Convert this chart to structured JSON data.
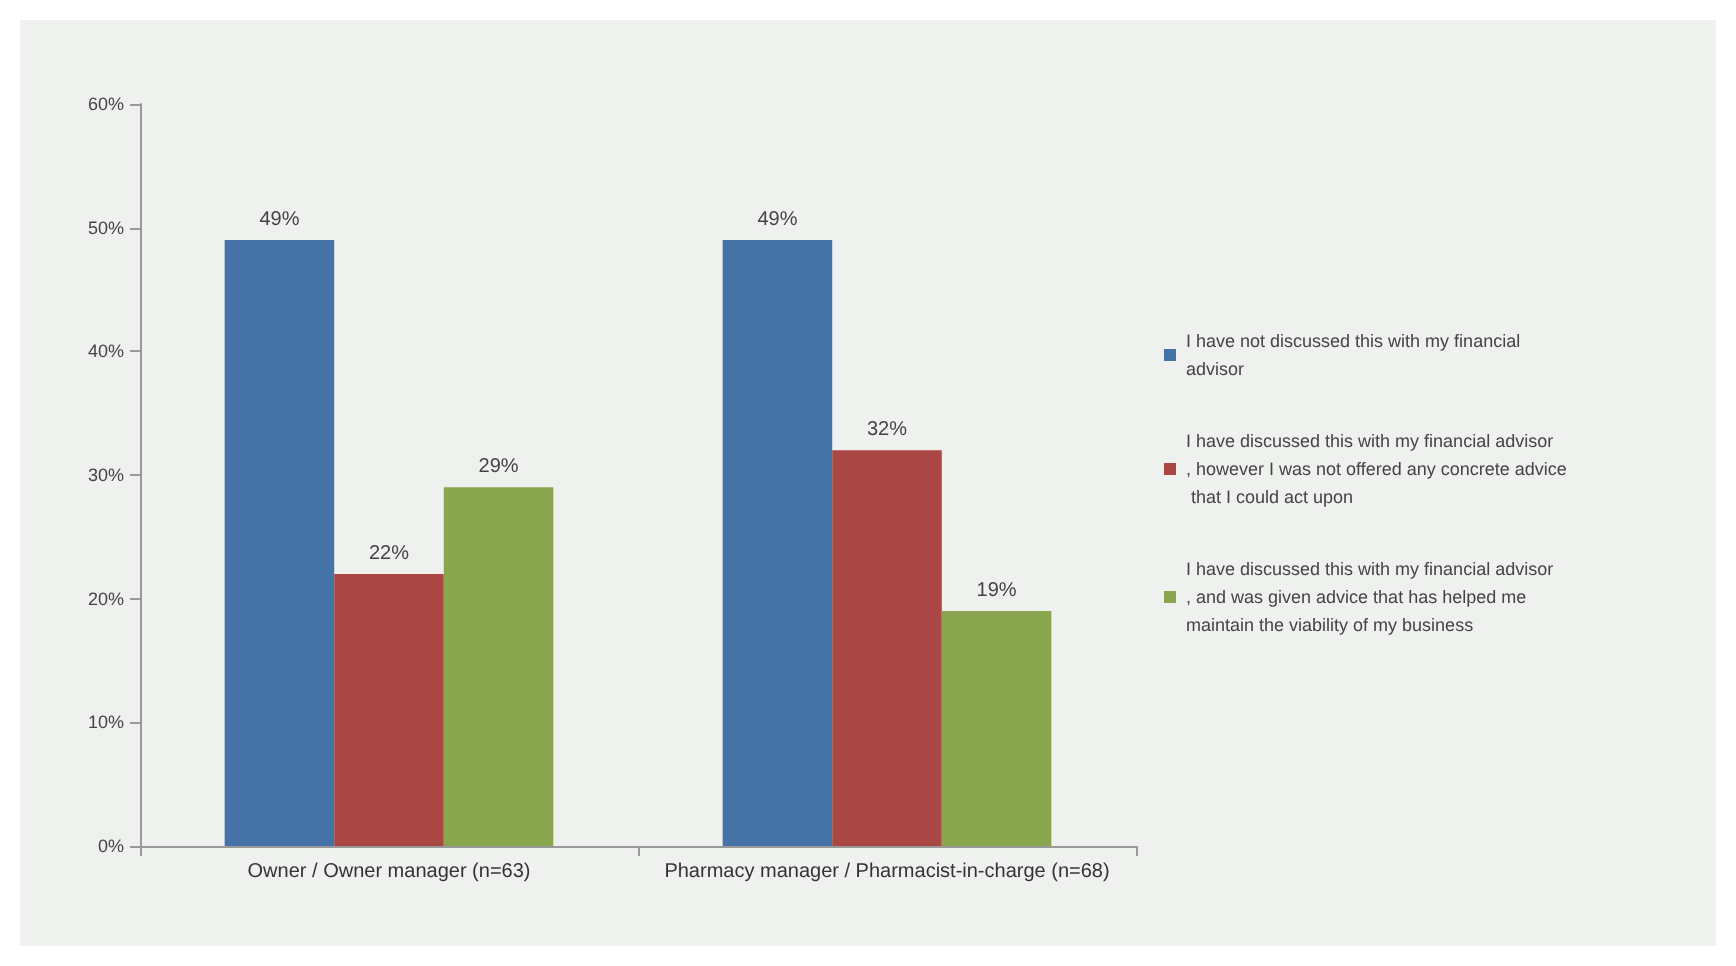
{
  "chart_data": {
    "type": "bar",
    "categories": [
      "Owner / Owner manager (n=63)",
      "Pharmacy manager / Pharmacist-in-charge (n=68)"
    ],
    "series": [
      {
        "name": "I have not discussed this with my financial advisor",
        "color": "#4573a7",
        "values": [
          49,
          49
        ],
        "value_labels": [
          "49%",
          "49%"
        ]
      },
      {
        "name": "I have discussed this with my financial advisor, however I was not offered any concrete advice that I could act upon",
        "color": "#aa4643",
        "values": [
          22,
          32
        ],
        "value_labels": [
          "22%",
          "32%"
        ]
      },
      {
        "name": "I have discussed this with my financial advisor, and was given advice that has helped me maintain the viability of my business",
        "color": "#89a54e",
        "values": [
          29,
          19
        ],
        "value_labels": [
          "29%",
          "19%"
        ]
      }
    ],
    "ylim": [
      0,
      60
    ],
    "yticks": [
      {
        "value": 0,
        "label": "0%"
      },
      {
        "value": 10,
        "label": "10%"
      },
      {
        "value": 20,
        "label": "20%"
      },
      {
        "value": 30,
        "label": "30%"
      },
      {
        "value": 40,
        "label": "40%"
      },
      {
        "value": 50,
        "label": "50%"
      },
      {
        "value": 60,
        "label": "60%"
      }
    ],
    "grid": false,
    "legend": "right"
  }
}
